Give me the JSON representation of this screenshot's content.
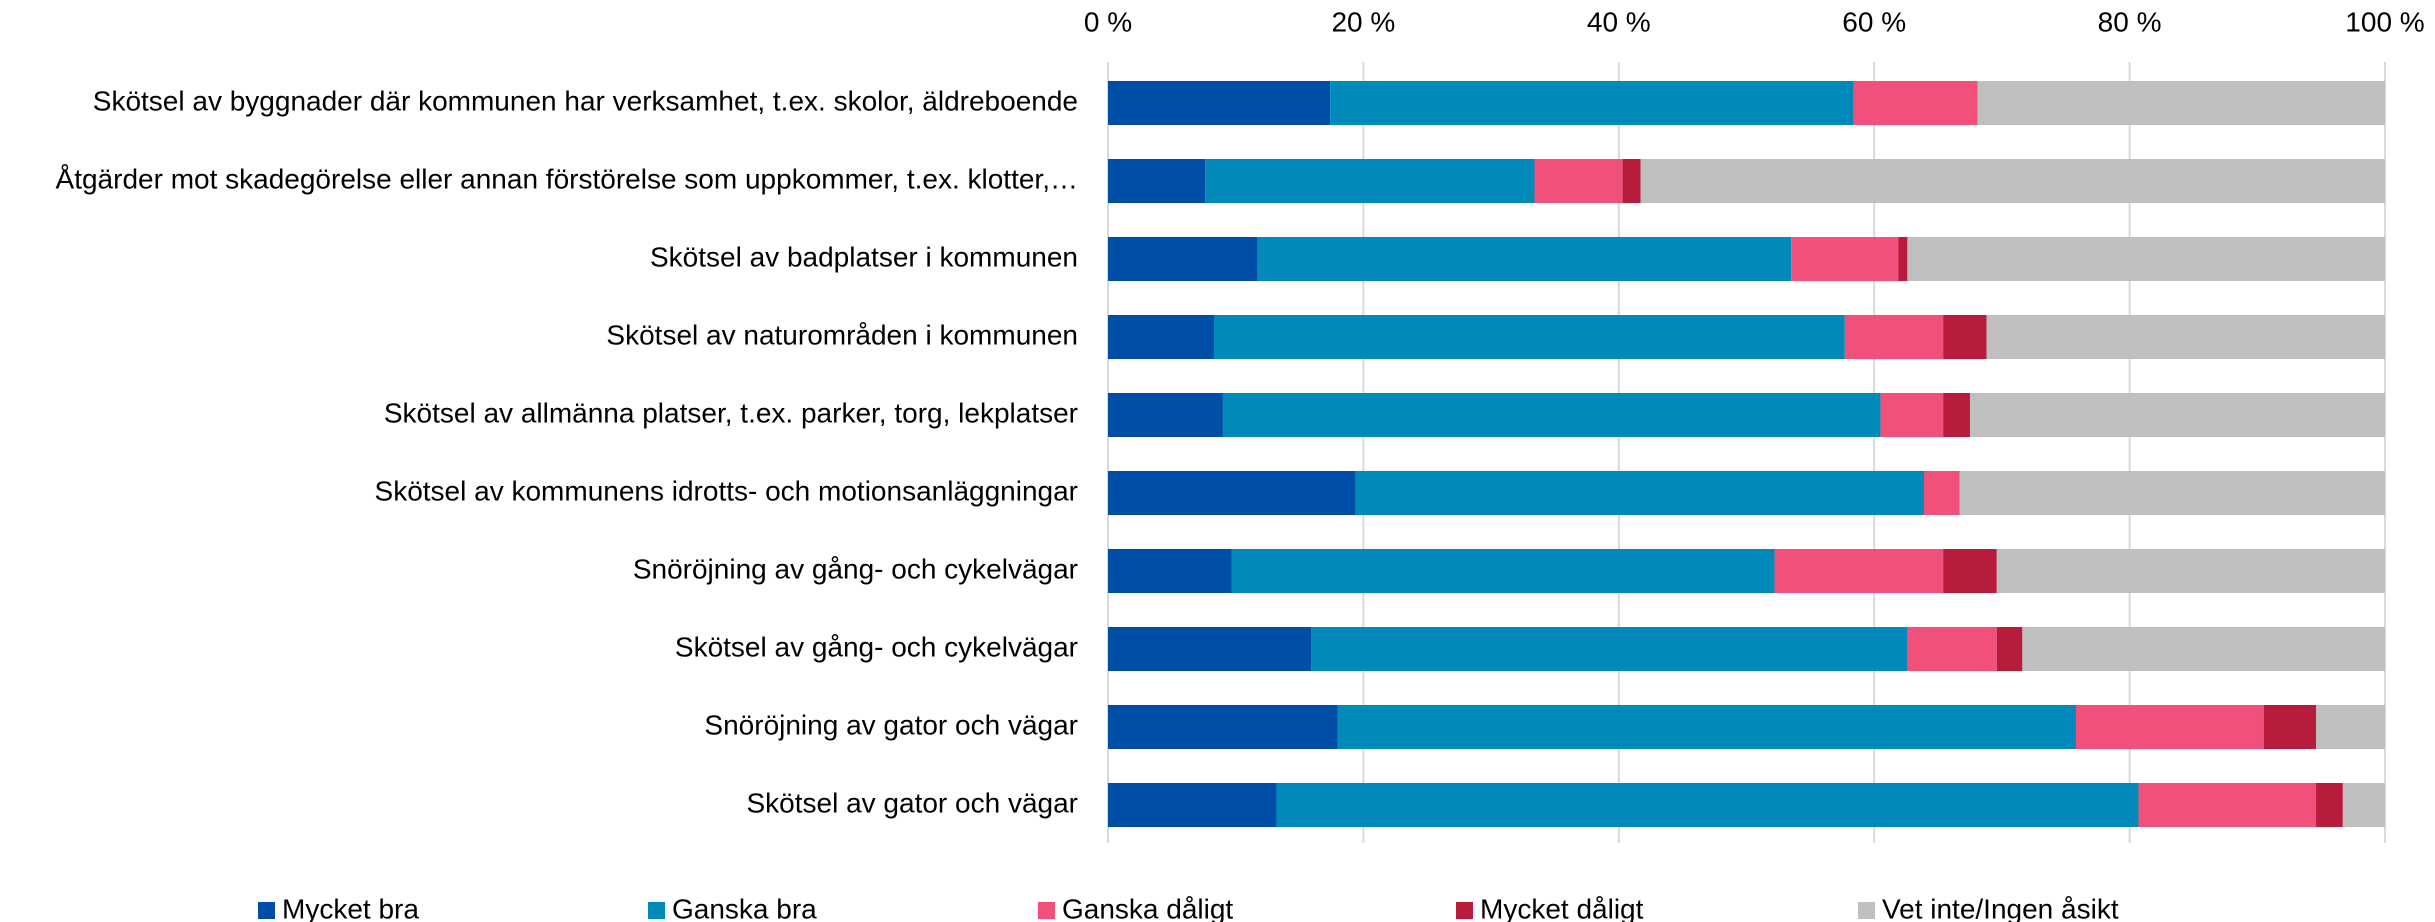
{
  "chart_data": {
    "type": "stacked-barh",
    "categories": [
      "Skötsel av byggnader där kommunen har verksamhet, t.ex. skolor, äldreboende",
      "Åtgärder mot skadegörelse eller annan förstörelse som uppkommer, t.ex. klotter,…",
      "Skötsel av badplatser i kommunen",
      "Skötsel av naturområden i kommunen",
      "Skötsel av allmänna platser, t.ex. parker, torg, lekplatser",
      "Skötsel av kommunens idrotts- och motionsanläggningar",
      "Snöröjning av gång- och cykelvägar",
      "Skötsel av gång- och cykelvägar",
      "Snöröjning av gator och vägar",
      "Skötsel av gator och vägar"
    ],
    "series": [
      {
        "name": "Mycket bra",
        "color": "#004ea8",
        "values": [
          17.4,
          7.6,
          11.7,
          8.3,
          9.0,
          19.4,
          9.7,
          15.9,
          18.0,
          13.2
        ]
      },
      {
        "name": "Ganska bra",
        "color": "#0089b9",
        "values": [
          41.0,
          25.8,
          41.8,
          49.4,
          51.5,
          44.5,
          42.5,
          46.7,
          57.8,
          67.5
        ]
      },
      {
        "name": "Ganska dåligt",
        "color": "#f0507a",
        "values": [
          9.7,
          6.9,
          8.4,
          7.7,
          4.9,
          2.8,
          13.2,
          7.0,
          14.7,
          13.9
        ]
      },
      {
        "name": "Mycket dåligt",
        "color": "#b71c3c",
        "values": [
          0,
          1.4,
          0.7,
          3.4,
          2.1,
          0,
          4.2,
          2.0,
          4.1,
          2.1
        ]
      },
      {
        "name": "Vet inte/Ingen åsikt",
        "color": "#bfbfbf",
        "values": [
          31.9,
          58.3,
          37.4,
          31.2,
          32.5,
          33.3,
          30.4,
          28.4,
          5.4,
          3.3
        ]
      }
    ],
    "xlim": [
      0,
      100
    ],
    "xticks": [
      {
        "value": 0,
        "label": "0 %"
      },
      {
        "value": 20,
        "label": "20 %"
      },
      {
        "value": 40,
        "label": "40 %"
      },
      {
        "value": 60,
        "label": "60 %"
      },
      {
        "value": 80,
        "label": "80 %"
      },
      {
        "value": 100,
        "label": "100 %"
      }
    ],
    "grid": true,
    "legend": "bottom"
  }
}
